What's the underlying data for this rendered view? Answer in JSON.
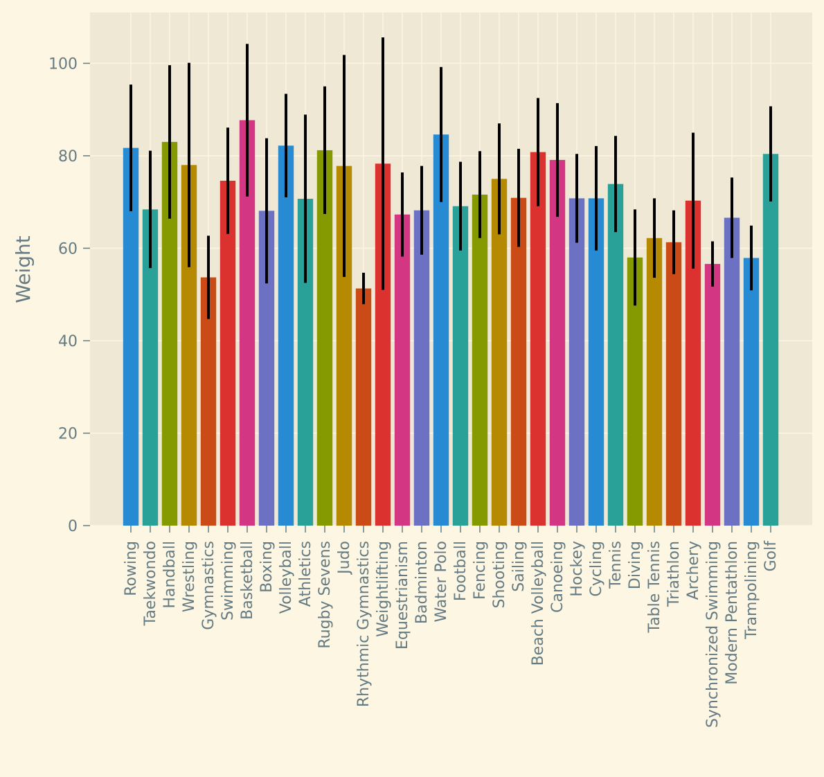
{
  "chart_data": {
    "type": "bar",
    "title": "",
    "xlabel": "",
    "ylabel": "Weight",
    "ylim": [
      0,
      111
    ],
    "yticks": [
      0,
      20,
      40,
      60,
      80,
      100
    ],
    "grid": true,
    "categories": [
      "Rowing",
      "Taekwondo",
      "Handball",
      "Wrestling",
      "Gymnastics",
      "Swimming",
      "Basketball",
      "Boxing",
      "Volleyball",
      "Athletics",
      "Rugby Sevens",
      "Judo",
      "Rhythmic Gymnastics",
      "Weightlifting",
      "Equestrianism",
      "Badminton",
      "Water Polo",
      "Football",
      "Fencing",
      "Shooting",
      "Sailing",
      "Beach Volleyball",
      "Canoeing",
      "Hockey",
      "Cycling",
      "Tennis",
      "Diving",
      "Table Tennis",
      "Triathlon",
      "Archery",
      "Synchronized Swimming",
      "Modern Pentathlon",
      "Trampolining",
      "Golf"
    ],
    "values": [
      81.7,
      68.4,
      83.0,
      78.0,
      53.7,
      74.6,
      87.7,
      68.1,
      82.2,
      70.7,
      81.2,
      77.8,
      51.3,
      78.3,
      67.3,
      68.2,
      84.6,
      69.1,
      71.6,
      75.0,
      70.9,
      80.8,
      79.1,
      70.8,
      70.8,
      73.9,
      58.0,
      62.2,
      61.3,
      70.3,
      56.6,
      66.6,
      57.9,
      80.4
    ],
    "errors": [
      13.7,
      12.7,
      16.6,
      22.1,
      9.0,
      11.5,
      16.5,
      15.7,
      11.2,
      18.2,
      13.8,
      24.0,
      3.4,
      27.3,
      9.1,
      9.6,
      14.6,
      9.6,
      9.4,
      12.0,
      10.6,
      11.7,
      12.3,
      9.6,
      11.3,
      10.4,
      10.4,
      8.6,
      6.9,
      14.7,
      4.9,
      8.7,
      7.0,
      10.3
    ],
    "colors": [
      "#268bd2",
      "#2aa198",
      "#859900",
      "#b58900",
      "#cb4b16",
      "#dc322f",
      "#d33682",
      "#6c71c4"
    ]
  }
}
